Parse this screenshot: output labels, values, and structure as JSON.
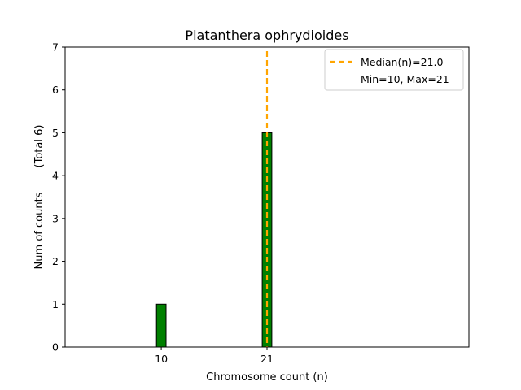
{
  "chart_data": {
    "type": "bar",
    "title": "Platanthera ophrydioides",
    "xlabel": "Chromosome count (n)",
    "ylabel": "Num of counts",
    "ylabel_total": "(Total 6)",
    "xlim": [
      0,
      42
    ],
    "ylim": [
      0,
      7
    ],
    "x_ticks": [
      10,
      21
    ],
    "y_ticks": [
      0,
      1,
      2,
      3,
      4,
      5,
      6,
      7
    ],
    "grid": false,
    "legend_position": "top-right",
    "bars": [
      {
        "x": 10,
        "value": 1
      },
      {
        "x": 21,
        "value": 5
      }
    ],
    "bar_color": "#008000",
    "bar_edge_color": "#000000",
    "median": 21.0,
    "median_color": "#FFA500",
    "legend": [
      {
        "label": "Median(n)=21.0",
        "style": "dashed",
        "color": "#FFA500"
      },
      {
        "label": "Min=10, Max=21",
        "style": "none",
        "color": "#ffffff"
      }
    ]
  }
}
